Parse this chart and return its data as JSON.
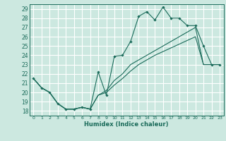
{
  "xlabel": "Humidex (Indice chaleur)",
  "xlim": [
    -0.5,
    23.5
  ],
  "ylim": [
    17.5,
    29.5
  ],
  "xticks": [
    0,
    1,
    2,
    3,
    4,
    5,
    6,
    7,
    8,
    9,
    10,
    11,
    12,
    13,
    14,
    15,
    16,
    17,
    18,
    19,
    20,
    21,
    22,
    23
  ],
  "yticks": [
    18,
    19,
    20,
    21,
    22,
    23,
    24,
    25,
    26,
    27,
    28,
    29
  ],
  "bg_color": "#cce8e0",
  "grid_color": "#ffffff",
  "line_color": "#1a6b5a",
  "line1_x": [
    0,
    1,
    2,
    3,
    4,
    5,
    6,
    7,
    8,
    9,
    10,
    11,
    12,
    13,
    14,
    15,
    16,
    17,
    18,
    19,
    20,
    21,
    22,
    23
  ],
  "line1_y": [
    21.5,
    20.5,
    20.0,
    18.8,
    18.2,
    18.2,
    18.4,
    18.2,
    22.2,
    19.7,
    23.9,
    24.0,
    25.5,
    28.2,
    28.7,
    27.8,
    29.2,
    28.0,
    28.0,
    27.2,
    27.2,
    25.0,
    23.0,
    23.0
  ],
  "line2_x": [
    0,
    1,
    2,
    3,
    4,
    5,
    6,
    7,
    8,
    9,
    10,
    11,
    12,
    13,
    14,
    15,
    16,
    17,
    18,
    19,
    20,
    21,
    22,
    23
  ],
  "line2_y": [
    21.5,
    20.5,
    20.0,
    18.8,
    18.2,
    18.2,
    18.4,
    18.2,
    19.7,
    20.2,
    21.3,
    22.0,
    23.0,
    23.5,
    24.0,
    24.5,
    25.0,
    25.5,
    26.0,
    26.5,
    27.0,
    23.0,
    23.0,
    23.0
  ],
  "line3_x": [
    0,
    1,
    2,
    3,
    4,
    5,
    6,
    7,
    8,
    9,
    10,
    11,
    12,
    13,
    14,
    15,
    16,
    17,
    18,
    19,
    20,
    21,
    22,
    23
  ],
  "line3_y": [
    21.5,
    20.5,
    20.0,
    18.8,
    18.2,
    18.2,
    18.4,
    18.2,
    19.7,
    20.0,
    20.8,
    21.5,
    22.3,
    23.0,
    23.5,
    24.0,
    24.4,
    24.8,
    25.2,
    25.6,
    26.0,
    23.0,
    23.0,
    23.0
  ]
}
